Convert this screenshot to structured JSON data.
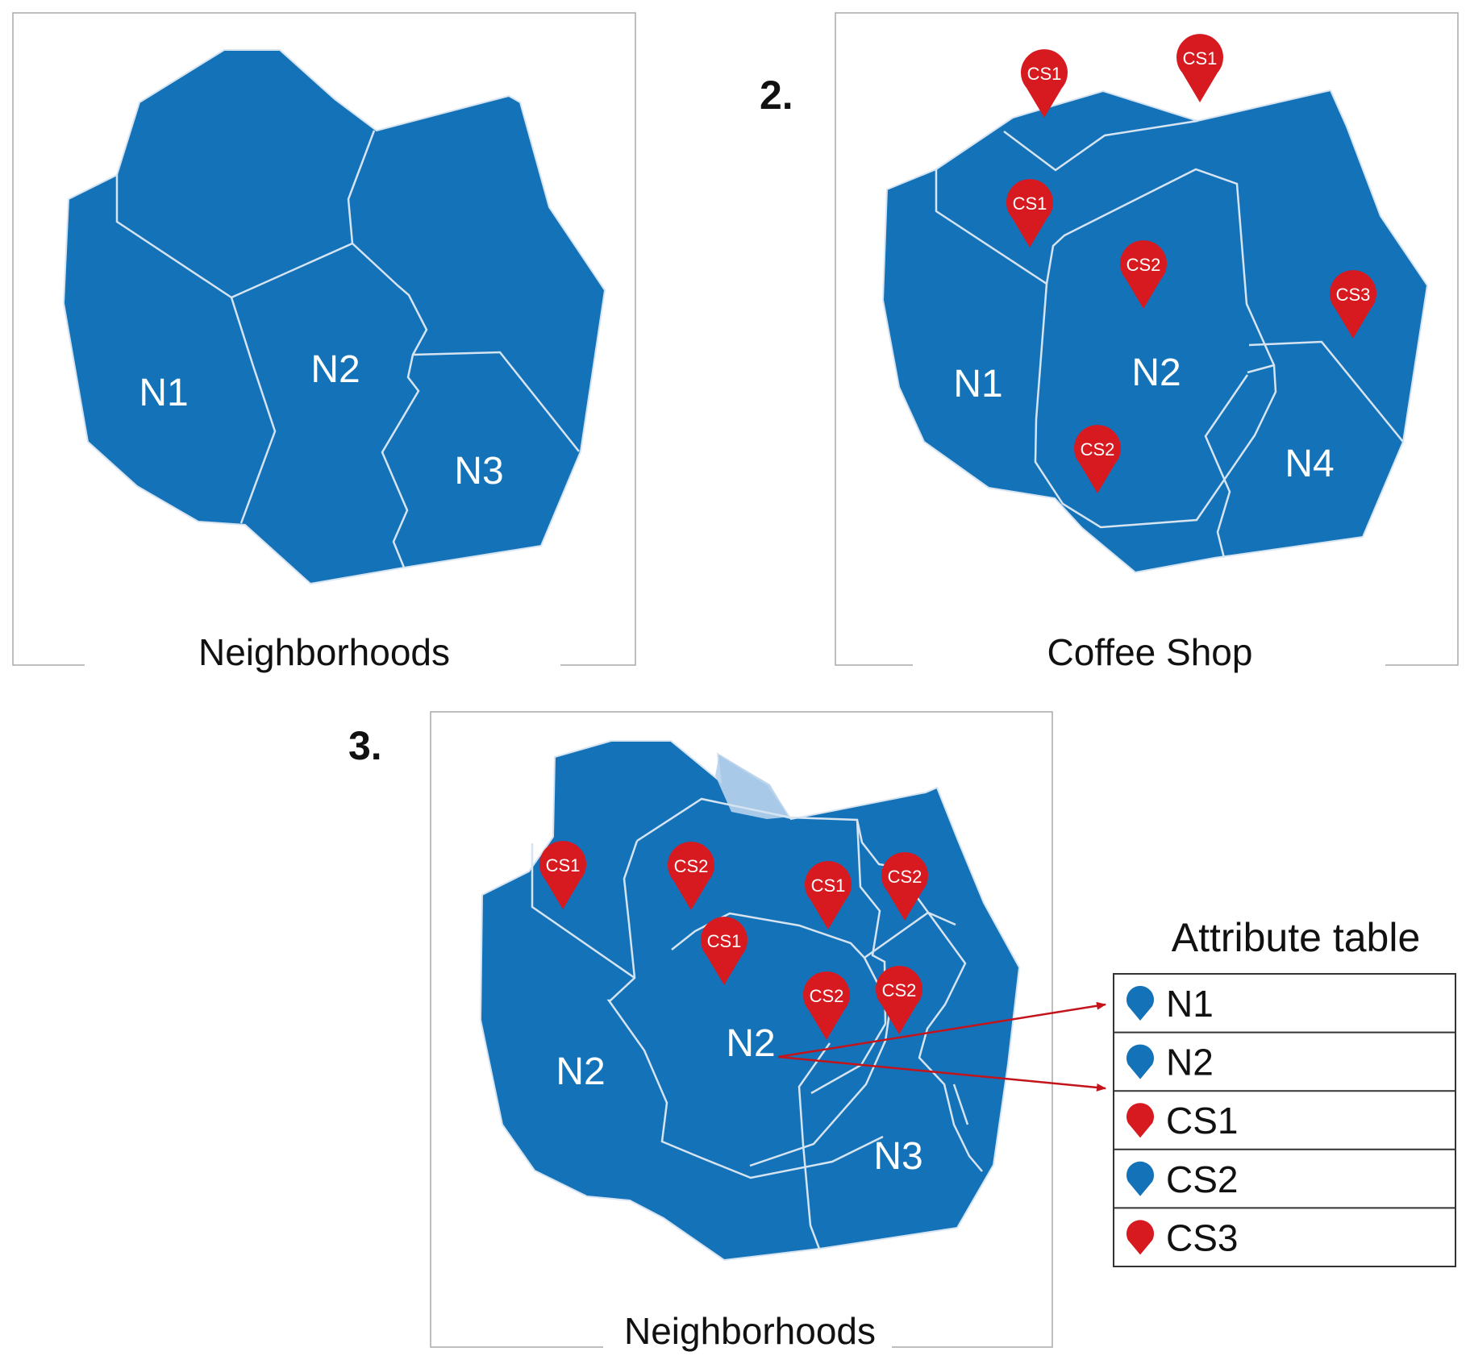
{
  "colors": {
    "region_fill": "#1473b8",
    "region_border": "#d6e4f2",
    "overlap_fill": "#b8d3ec",
    "pin_red": "#d71920",
    "pin_blue": "#1473b8",
    "frame": "#a9a9a9",
    "arrow": "#c4141b",
    "text_dark": "#111111",
    "text_light": "#ffffff"
  },
  "panel1": {
    "caption": "Neighborhoods",
    "regions": [
      "N1",
      "N2",
      "N3"
    ]
  },
  "panel2": {
    "number": "2.",
    "caption": "Coffee Shop",
    "regions": [
      "N1",
      "N2",
      "N4"
    ],
    "pins": [
      "CS1",
      "CS1",
      "CS1",
      "CS2",
      "CS3",
      "CS2"
    ]
  },
  "panel3": {
    "number": "3.",
    "caption": "Neighborhoods",
    "regions": [
      "N2",
      "N2",
      "N3"
    ],
    "pins": [
      "CS1",
      "CS2",
      "CS1",
      "CS2",
      "CS1",
      "CS2",
      "CS2"
    ]
  },
  "attribute_table": {
    "title": "Attribute table",
    "rows": [
      {
        "label": "N1",
        "icon": "blue-pin-icon",
        "color": "#1473b8"
      },
      {
        "label": "N2",
        "icon": "blue-pin-icon",
        "color": "#1473b8"
      },
      {
        "label": "CS1",
        "icon": "red-pin-icon",
        "color": "#d71920"
      },
      {
        "label": "CS2",
        "icon": "blue-pin-icon",
        "color": "#1473b8"
      },
      {
        "label": "CS3",
        "icon": "red-pin-icon",
        "color": "#d71920"
      }
    ]
  }
}
